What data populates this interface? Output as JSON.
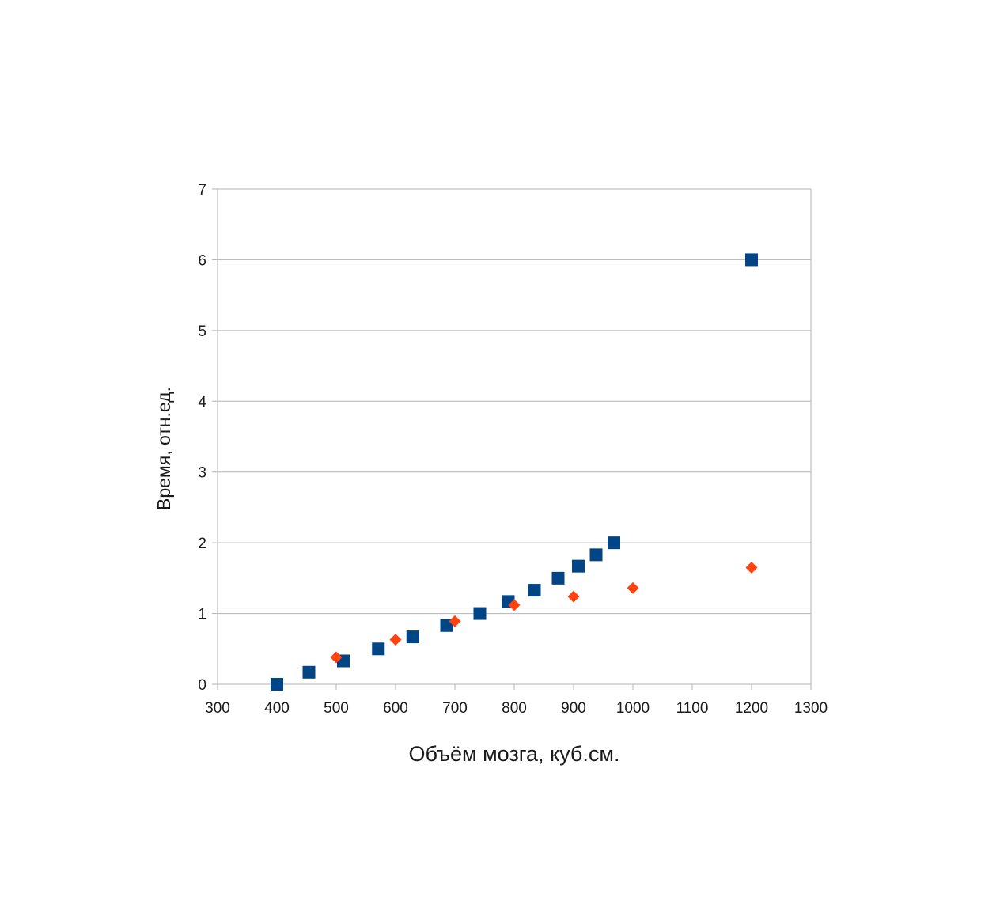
{
  "chart_data": {
    "type": "scatter",
    "title": "",
    "xlabel": "Объём мозга, куб.см.",
    "ylabel": "Время, отн.ед.",
    "xlim": [
      300,
      1300
    ],
    "ylim": [
      0,
      7
    ],
    "x_ticks": [
      "300",
      "400",
      "500",
      "600",
      "700",
      "800",
      "900",
      "1000",
      "1100",
      "1200",
      "1300"
    ],
    "y_ticks": [
      "0",
      "1",
      "2",
      "3",
      "4",
      "5",
      "6",
      "7"
    ],
    "grid": "horizontal",
    "legend": "none",
    "series": [
      {
        "marker": "square",
        "color": "#004586",
        "points": [
          [
            400,
            0
          ],
          [
            454,
            0.17
          ],
          [
            512,
            0.33
          ],
          [
            571,
            0.5
          ],
          [
            629,
            0.67
          ],
          [
            686,
            0.83
          ],
          [
            742,
            1.0
          ],
          [
            790,
            1.17
          ],
          [
            834,
            1.33
          ],
          [
            874,
            1.5
          ],
          [
            908,
            1.67
          ],
          [
            938,
            1.83
          ],
          [
            968,
            2.0
          ],
          [
            1200,
            6.0
          ]
        ]
      },
      {
        "marker": "diamond",
        "color": "#ff420e",
        "points": [
          [
            500,
            0.38
          ],
          [
            600,
            0.63
          ],
          [
            700,
            0.89
          ],
          [
            800,
            1.12
          ],
          [
            900,
            1.24
          ],
          [
            1000,
            1.36
          ],
          [
            1200,
            1.65
          ]
        ]
      }
    ]
  }
}
